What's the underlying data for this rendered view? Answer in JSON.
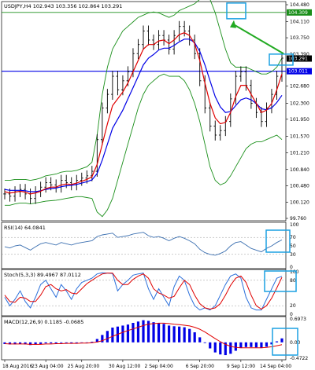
{
  "colors": {
    "price": "#000000",
    "ema_fast": "#e00000",
    "ema_slow": "#0000e6",
    "bollinger": "#1a8f1a",
    "hline_top": "#1a8f1a",
    "hline_mid": "#0000e6",
    "annotation_box": "#1ba1e2",
    "arrow": "#22aa22",
    "rsi": "#3b6fb0",
    "stoch_main": "#2a6fdb",
    "stoch_signal": "#e00000",
    "macd_hist": "#0000e6",
    "macd_signal": "#e00000"
  },
  "chart_data": [
    {
      "type": "line",
      "title": "USDJPY,H4  102.943 103.356 102.864 103.291",
      "x_ticks": [
        "18 Aug 2016",
        "23 Aug 04:00",
        "25 Aug 20:00",
        "30 Aug 12:00",
        "2 Sep 04:00",
        "6 Sep 20:00",
        "9 Sep 12:00",
        "14 Sep 04:00"
      ],
      "y_ticks": [
        104.48,
        104.11,
        103.75,
        103.39,
        102.68,
        102.3,
        101.95,
        101.57,
        101.21,
        100.84,
        100.48,
        100.12,
        99.76
      ],
      "ylim": [
        99.76,
        104.48
      ],
      "price_labels": [
        "104.309",
        "103.291",
        "103.011"
      ],
      "hlines": [
        104.309,
        103.011
      ],
      "close": [
        100.3,
        100.25,
        100.35,
        100.4,
        100.3,
        100.2,
        100.35,
        100.45,
        100.55,
        100.5,
        100.45,
        100.6,
        100.55,
        100.5,
        100.6,
        100.65,
        100.7,
        100.8,
        101.5,
        102.2,
        102.5,
        102.9,
        102.6,
        102.8,
        103.0,
        103.4,
        103.6,
        103.9,
        103.7,
        103.6,
        103.8,
        103.7,
        103.5,
        103.8,
        104.0,
        103.9,
        103.7,
        103.4,
        102.8,
        102.2,
        101.8,
        101.6,
        101.7,
        101.9,
        102.4,
        102.9,
        103.0,
        102.7,
        102.3,
        102.1,
        101.9,
        102.2,
        102.5,
        102.9,
        103.3
      ],
      "ema_fast": [
        100.35,
        100.32,
        100.34,
        100.36,
        100.34,
        100.3,
        100.32,
        100.36,
        100.42,
        100.45,
        100.45,
        100.5,
        100.52,
        100.51,
        100.54,
        100.58,
        100.62,
        100.68,
        100.95,
        101.4,
        101.85,
        102.25,
        102.4,
        102.55,
        102.75,
        103.0,
        103.25,
        103.5,
        103.6,
        103.6,
        103.68,
        103.7,
        103.62,
        103.7,
        103.82,
        103.86,
        103.8,
        103.62,
        103.25,
        102.75,
        102.3,
        101.98,
        101.85,
        101.88,
        102.1,
        102.45,
        102.7,
        102.7,
        102.5,
        102.3,
        102.1,
        102.15,
        102.3,
        102.6,
        102.95
      ],
      "ema_slow": [
        100.4,
        100.38,
        100.38,
        100.38,
        100.37,
        100.35,
        100.35,
        100.37,
        100.4,
        100.42,
        100.43,
        100.46,
        100.48,
        100.49,
        100.51,
        100.54,
        100.57,
        100.61,
        100.75,
        101.05,
        101.4,
        101.75,
        101.95,
        102.15,
        102.4,
        102.65,
        102.9,
        103.15,
        103.3,
        103.38,
        103.48,
        103.52,
        103.52,
        103.58,
        103.66,
        103.72,
        103.72,
        103.64,
        103.45,
        103.15,
        102.8,
        102.45,
        102.22,
        102.1,
        102.12,
        102.25,
        102.38,
        102.42,
        102.38,
        102.3,
        102.18,
        102.16,
        102.2,
        102.32,
        102.48
      ],
      "bb_upper": [
        100.6,
        100.6,
        100.62,
        100.62,
        100.62,
        100.6,
        100.62,
        100.65,
        100.7,
        100.72,
        100.74,
        100.78,
        100.8,
        100.8,
        100.82,
        100.86,
        100.9,
        101.0,
        101.6,
        102.5,
        103.1,
        103.5,
        103.7,
        103.9,
        104.0,
        104.1,
        104.2,
        104.25,
        104.3,
        104.32,
        104.3,
        104.25,
        104.2,
        104.25,
        104.35,
        104.4,
        104.45,
        104.5,
        104.6,
        104.7,
        104.6,
        104.3,
        103.9,
        103.5,
        103.2,
        103.1,
        103.1,
        103.1,
        103.05,
        103.0,
        102.95,
        102.95,
        103.0,
        103.1,
        103.3
      ],
      "bb_lower": [
        100.05,
        100.05,
        100.08,
        100.1,
        100.1,
        100.08,
        100.1,
        100.12,
        100.14,
        100.15,
        100.16,
        100.18,
        100.2,
        100.22,
        100.24,
        100.24,
        100.22,
        100.2,
        99.9,
        99.8,
        99.95,
        100.2,
        100.6,
        101.0,
        101.4,
        101.8,
        102.2,
        102.5,
        102.7,
        102.8,
        102.9,
        102.95,
        102.9,
        102.9,
        102.9,
        102.8,
        102.6,
        102.3,
        101.9,
        101.4,
        100.9,
        100.6,
        100.5,
        100.55,
        100.7,
        100.9,
        101.1,
        101.3,
        101.4,
        101.45,
        101.45,
        101.5,
        101.55,
        101.6,
        101.5
      ]
    },
    {
      "type": "line",
      "title": "RSI(14) 64.0841",
      "y_ticks": [
        100,
        70,
        50,
        30,
        0
      ],
      "ylim": [
        0,
        100
      ],
      "values": [
        48,
        45,
        50,
        52,
        46,
        40,
        48,
        55,
        58,
        55,
        52,
        58,
        55,
        52,
        56,
        58,
        60,
        62,
        72,
        76,
        78,
        80,
        70,
        72,
        74,
        78,
        80,
        82,
        74,
        70,
        72,
        68,
        62,
        68,
        72,
        68,
        62,
        55,
        42,
        34,
        30,
        28,
        32,
        38,
        50,
        58,
        60,
        52,
        44,
        40,
        36,
        44,
        50,
        58,
        64
      ]
    },
    {
      "type": "line",
      "title": "Stoch(5,3,3) 89.4967 87.0112",
      "y_ticks": [
        100,
        80,
        20,
        0
      ],
      "ylim": [
        0,
        100
      ],
      "main": [
        40,
        20,
        35,
        55,
        30,
        15,
        40,
        70,
        80,
        60,
        40,
        70,
        55,
        35,
        60,
        75,
        80,
        85,
        95,
        98,
        97,
        96,
        55,
        70,
        80,
        92,
        95,
        97,
        60,
        35,
        60,
        40,
        20,
        65,
        90,
        80,
        45,
        20,
        10,
        15,
        10,
        20,
        45,
        70,
        90,
        95,
        85,
        40,
        15,
        10,
        10,
        35,
        60,
        85,
        89.5
      ],
      "signal": [
        45,
        30,
        28,
        40,
        38,
        30,
        30,
        45,
        65,
        70,
        60,
        55,
        58,
        50,
        48,
        60,
        72,
        80,
        88,
        95,
        97,
        97,
        80,
        70,
        70,
        82,
        90,
        95,
        85,
        60,
        50,
        45,
        38,
        42,
        62,
        80,
        70,
        45,
        25,
        15,
        12,
        15,
        25,
        45,
        68,
        85,
        90,
        75,
        45,
        20,
        12,
        20,
        38,
        62,
        87.0
      ]
    },
    {
      "type": "bar",
      "title": "MACD(12,26,9) 0.1185 -0.0685",
      "y_ticks": [
        0.6973,
        0.0,
        -0.4722
      ],
      "ylim": [
        -0.4722,
        0.6973
      ],
      "histogram": [
        -0.05,
        -0.06,
        -0.06,
        -0.05,
        -0.06,
        -0.08,
        -0.07,
        -0.05,
        -0.03,
        -0.03,
        -0.03,
        -0.02,
        -0.02,
        -0.03,
        -0.02,
        -0.01,
        0.0,
        0.02,
        0.1,
        0.22,
        0.34,
        0.44,
        0.47,
        0.5,
        0.53,
        0.58,
        0.62,
        0.66,
        0.64,
        0.6,
        0.58,
        0.55,
        0.5,
        0.48,
        0.47,
        0.45,
        0.4,
        0.3,
        0.15,
        -0.02,
        -0.18,
        -0.3,
        -0.36,
        -0.38,
        -0.34,
        -0.25,
        -0.17,
        -0.14,
        -0.14,
        -0.15,
        -0.17,
        -0.13,
        -0.06,
        0.03,
        0.1185
      ],
      "signal": [
        -0.04,
        -0.05,
        -0.05,
        -0.05,
        -0.05,
        -0.06,
        -0.06,
        -0.06,
        -0.05,
        -0.05,
        -0.04,
        -0.04,
        -0.03,
        -0.03,
        -0.03,
        -0.02,
        -0.02,
        -0.01,
        0.01,
        0.05,
        0.11,
        0.18,
        0.24,
        0.3,
        0.35,
        0.4,
        0.45,
        0.5,
        0.54,
        0.56,
        0.57,
        0.57,
        0.56,
        0.54,
        0.53,
        0.51,
        0.49,
        0.45,
        0.39,
        0.31,
        0.21,
        0.11,
        0.02,
        -0.06,
        -0.12,
        -0.15,
        -0.16,
        -0.16,
        -0.16,
        -0.16,
        -0.16,
        -0.15,
        -0.13,
        -0.1,
        -0.0685
      ]
    }
  ]
}
